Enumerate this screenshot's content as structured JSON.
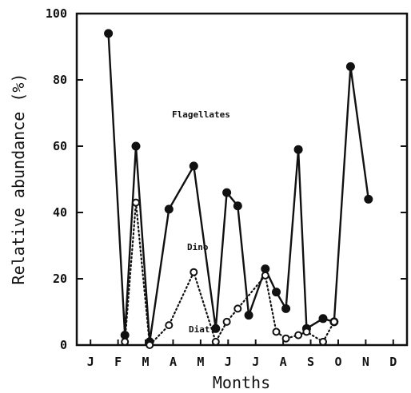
{
  "chart_data": {
    "type": "line",
    "title": "",
    "xlabel": "Months",
    "ylabel": "Relative abundance (%)",
    "x_ticks": [
      "J",
      "F",
      "M",
      "A",
      "M",
      "J",
      "J",
      "A",
      "S",
      "O",
      "N",
      "D"
    ],
    "xlim": [
      0,
      12
    ],
    "ylim": [
      0,
      100
    ],
    "y_ticks": [
      0,
      20,
      40,
      60,
      80,
      100
    ],
    "grid": false,
    "series": [
      {
        "name": "Flagellates",
        "marker": "filled-circle",
        "line": "solid",
        "x": [
          1.15,
          1.75,
          2.15,
          2.65,
          3.35,
          4.25,
          5.05,
          5.45,
          5.85,
          6.25,
          6.85,
          7.25,
          7.6,
          8.05,
          8.35,
          8.95,
          9.35,
          9.95,
          10.6,
          11.2
        ],
        "y": [
          94,
          3,
          60,
          1,
          41,
          54,
          5,
          46,
          42,
          9,
          23,
          16,
          11,
          59,
          5,
          8,
          7,
          84,
          44,
          null
        ]
      },
      {
        "name": "Dino",
        "marker": "open-circle",
        "line": "dotted",
        "x": [
          1.75,
          2.15,
          2.65,
          3.35,
          4.25,
          5.05,
          5.45,
          5.85,
          6.85,
          7.25,
          7.6,
          8.05,
          8.35,
          8.95,
          9.35
        ],
        "y": [
          1,
          43,
          0,
          6,
          22,
          1,
          7,
          11,
          21,
          4,
          2,
          3,
          4,
          1,
          7
        ]
      }
    ],
    "annotations": [
      "Flagellates",
      "Dino",
      "Diat."
    ]
  }
}
